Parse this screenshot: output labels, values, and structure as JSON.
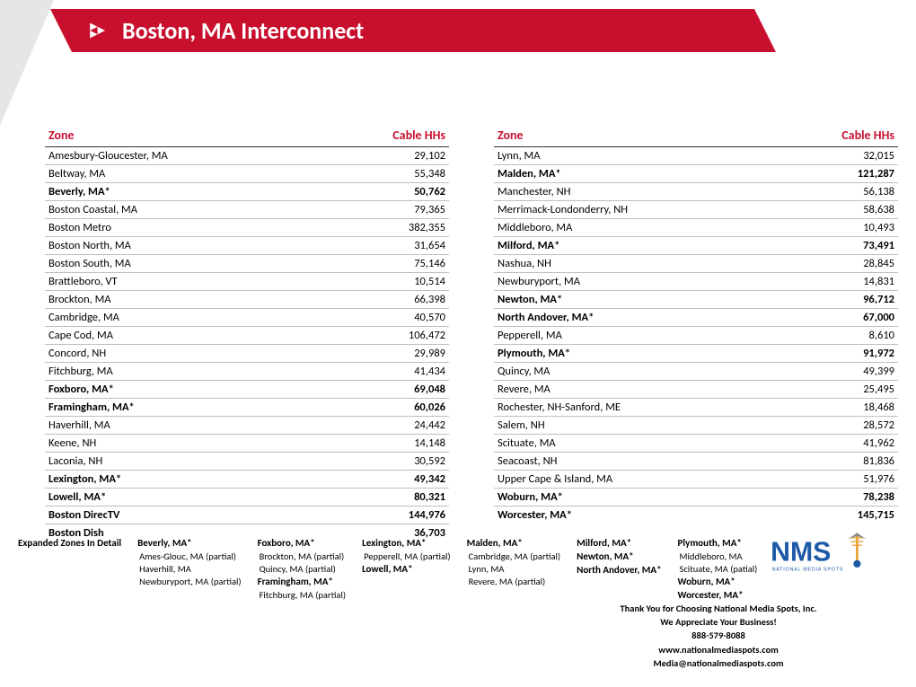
{
  "header": {
    "title": "Boston, MA Interconnect",
    "banner_color": "#c8102e",
    "gray_triangle_color": "#e6e6e6"
  },
  "table_headers": {
    "zone": "Zone",
    "hhs": "Cable HHs"
  },
  "columns": [
    {
      "rows": [
        {
          "zone": "Amesbury-Gloucester, MA",
          "hhs": "29,102",
          "bold": false
        },
        {
          "zone": "Beltway, MA",
          "hhs": "55,348",
          "bold": false
        },
        {
          "zone": "Beverly, MA*",
          "hhs": "50,762",
          "bold": true
        },
        {
          "zone": "Boston Coastal, MA",
          "hhs": "79,365",
          "bold": false
        },
        {
          "zone": "Boston Metro",
          "hhs": "382,355",
          "bold": false
        },
        {
          "zone": "Boston North, MA",
          "hhs": "31,654",
          "bold": false
        },
        {
          "zone": "Boston South, MA",
          "hhs": "75,146",
          "bold": false
        },
        {
          "zone": "Brattleboro, VT",
          "hhs": "10,514",
          "bold": false
        },
        {
          "zone": "Brockton, MA",
          "hhs": "66,398",
          "bold": false
        },
        {
          "zone": "Cambridge, MA",
          "hhs": "40,570",
          "bold": false
        },
        {
          "zone": "Cape Cod, MA",
          "hhs": "106,472",
          "bold": false
        },
        {
          "zone": "Concord, NH",
          "hhs": "29,989",
          "bold": false
        },
        {
          "zone": "Fitchburg, MA",
          "hhs": "41,434",
          "bold": false
        },
        {
          "zone": "Foxboro, MA*",
          "hhs": "69,048",
          "bold": true
        },
        {
          "zone": "Framingham, MA*",
          "hhs": "60,026",
          "bold": true
        },
        {
          "zone": "Haverhill, MA",
          "hhs": "24,442",
          "bold": false
        },
        {
          "zone": "Keene, NH",
          "hhs": "14,148",
          "bold": false
        },
        {
          "zone": "Laconia, NH",
          "hhs": "30,592",
          "bold": false
        },
        {
          "zone": "Lexington, MA*",
          "hhs": "49,342",
          "bold": true
        },
        {
          "zone": "Lowell, MA*",
          "hhs": "80,321",
          "bold": true
        },
        {
          "zone": "Boston DirecTV",
          "hhs": "144,976",
          "bold": true
        },
        {
          "zone": "Boston Dish",
          "hhs": "36,703",
          "bold": true,
          "noborder": true
        }
      ]
    },
    {
      "rows": [
        {
          "zone": "Lynn, MA",
          "hhs": "32,015",
          "bold": false
        },
        {
          "zone": "Malden, MA*",
          "hhs": "121,287",
          "bold": true
        },
        {
          "zone": "Manchester, NH",
          "hhs": "56,138",
          "bold": false
        },
        {
          "zone": "Merrimack-Londonderry, NH",
          "hhs": "58,638",
          "bold": false
        },
        {
          "zone": "Middleboro, MA",
          "hhs": "10,493",
          "bold": false
        },
        {
          "zone": "Milford, MA*",
          "hhs": "73,491",
          "bold": true
        },
        {
          "zone": "Nashua, NH",
          "hhs": "28,845",
          "bold": false
        },
        {
          "zone": "Newburyport, MA",
          "hhs": "14,831",
          "bold": false
        },
        {
          "zone": "Newton, MA*",
          "hhs": "96,712",
          "bold": true
        },
        {
          "zone": "North Andover, MA*",
          "hhs": "67,000",
          "bold": true
        },
        {
          "zone": "Pepperell, MA",
          "hhs": "8,610",
          "bold": false
        },
        {
          "zone": "Plymouth, MA*",
          "hhs": "91,972",
          "bold": true
        },
        {
          "zone": "Quincy, MA",
          "hhs": "49,399",
          "bold": false
        },
        {
          "zone": "Revere, MA",
          "hhs": "25,495",
          "bold": false
        },
        {
          "zone": "Rochester, NH-Sanford, ME",
          "hhs": "18,468",
          "bold": false
        },
        {
          "zone": "Salem, NH",
          "hhs": "28,572",
          "bold": false
        },
        {
          "zone": "Scituate, MA",
          "hhs": "41,962",
          "bold": false
        },
        {
          "zone": "Seacoast, NH",
          "hhs": "81,836",
          "bold": false
        },
        {
          "zone": "Upper Cape & Island, MA",
          "hhs": "51,976",
          "bold": false
        },
        {
          "zone": "Woburn, MA*",
          "hhs": "78,238",
          "bold": true
        },
        {
          "zone": "Worcester, MA*",
          "hhs": "145,715",
          "bold": true,
          "noborder": true
        }
      ]
    }
  ],
  "expanded": {
    "title": "Expanded Zones In Detail",
    "cols": [
      [
        {
          "t": "Beverly, MA*",
          "b": true
        },
        {
          "t": "Ames-Glouc, MA (partial)"
        },
        {
          "t": "Haverhill, MA"
        },
        {
          "t": "Newburyport, MA (partial)"
        }
      ],
      [
        {
          "t": "Foxboro, MA*",
          "b": true
        },
        {
          "t": "Brockton, MA (partial)"
        },
        {
          "t": "Quincy, MA (partial)"
        },
        {
          "t": "Framingham, MA*",
          "b": true
        },
        {
          "t": "Fitchburg, MA (partial)"
        }
      ],
      [
        {
          "t": "Lexington, MA*",
          "b": true
        },
        {
          "t": "Pepperell, MA (partial)"
        },
        {
          "t": "Lowell, MA*",
          "b": true
        }
      ],
      [
        {
          "t": "Malden, MA*",
          "b": true
        },
        {
          "t": "Cambridge, MA (partial)"
        },
        {
          "t": "Lynn, MA"
        },
        {
          "t": "Revere, MA (partial)"
        }
      ],
      [
        {
          "t": "Milford, MA*",
          "b": true
        },
        {
          "t": "Newton, MA*",
          "b": true
        },
        {
          "t": "North Andover, MA*",
          "b": true
        }
      ],
      [
        {
          "t": "Plymouth, MA*",
          "b": true
        },
        {
          "t": "Middleboro, MA"
        },
        {
          "t": "Scituate, MA (patial)"
        },
        {
          "t": "Woburn, MA*",
          "b": true
        },
        {
          "t": "Worcester, MA*",
          "b": true
        }
      ]
    ]
  },
  "footer": {
    "logo_main": "NMS",
    "logo_sub": "NATIONAL MEDIA SPOTS",
    "logo_blue": "#1e5aa8",
    "logo_orange": "#e8a33d",
    "lines": [
      "Thank You for Choosing National Media Spots, Inc.",
      "We Appreciate Your Business!",
      "888-579-8088",
      "www.nationalmediaspots.com",
      "Media@nationalmediaspots.com"
    ]
  }
}
